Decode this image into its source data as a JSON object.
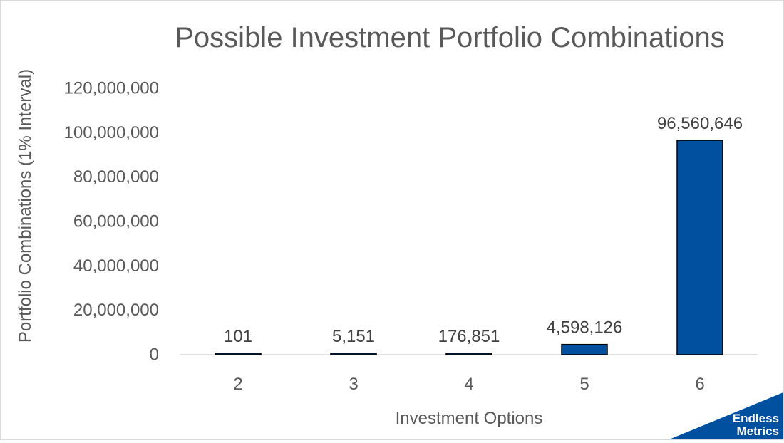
{
  "chart_data": {
    "type": "bar",
    "title": "Possible Investment Portfolio Combinations",
    "xlabel": "Investment Options",
    "ylabel": "Portfolio Combinations (1% Interval)",
    "categories": [
      "2",
      "3",
      "4",
      "5",
      "6"
    ],
    "values": [
      101,
      5151,
      176851,
      4598126,
      96560646
    ],
    "data_labels": [
      "101",
      "5,151",
      "176,851",
      "4,598,126",
      "96,560,646"
    ],
    "ylim": [
      0,
      120000000
    ],
    "yticks": [
      0,
      20000000,
      40000000,
      60000000,
      80000000,
      100000000,
      120000000
    ],
    "ytick_labels": [
      "0",
      "20,000,000",
      "40,000,000",
      "60,000,000",
      "80,000,000",
      "100,000,000",
      "120,000,000"
    ],
    "grid": false,
    "legend": "none",
    "colors": {
      "bar": "#0050a0",
      "bar_edge": "#000000",
      "axis": "#d9d9d9",
      "text": "#595959"
    }
  },
  "logo": {
    "line1": "Endless",
    "line2": "Metrics",
    "color": "#0050a0"
  }
}
